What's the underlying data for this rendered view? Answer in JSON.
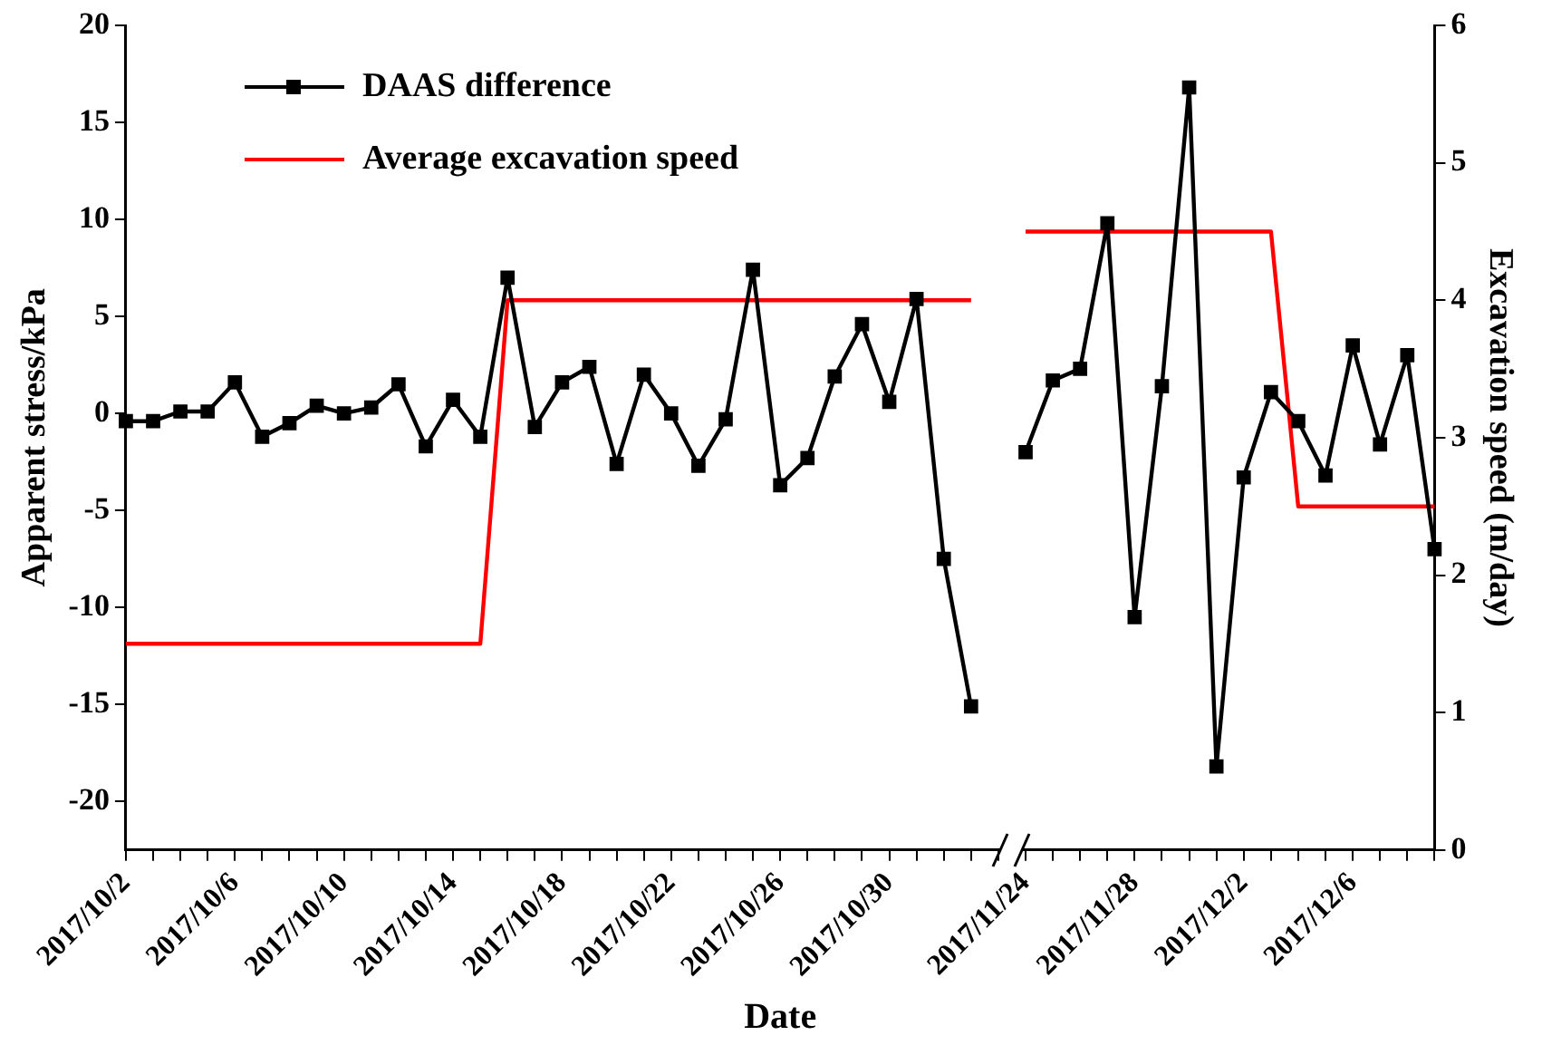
{
  "chart_data": {
    "type": "line",
    "xlabel": "Date",
    "ylabel": "Apparent stress/kPa",
    "y2label": "Excavation speed (m/day)",
    "categories": [
      "2017/10/2",
      null,
      null,
      null,
      "2017/10/6",
      null,
      null,
      null,
      "2017/10/10",
      null,
      null,
      null,
      "2017/10/14",
      null,
      null,
      null,
      "2017/10/18",
      null,
      null,
      null,
      "2017/10/22",
      null,
      null,
      null,
      "2017/10/26",
      null,
      null,
      null,
      "2017/10/30",
      null,
      null,
      null,
      null,
      "2017/11/24",
      null,
      null,
      null,
      "2017/11/28",
      null,
      null,
      null,
      "2017/12/2",
      null,
      null,
      null,
      "2017/12/6",
      null,
      null,
      null
    ],
    "series": [
      {
        "name": "DAAS difference",
        "color": "#000000",
        "marker": "square",
        "values": [
          -0.4,
          -0.4,
          0.1,
          0.1,
          1.6,
          -1.2,
          -0.5,
          0.4,
          0.0,
          0.3,
          1.5,
          -1.7,
          0.7,
          -1.2,
          7.0,
          -0.7,
          1.6,
          2.4,
          -2.6,
          2.0,
          0.0,
          -2.7,
          -0.3,
          7.4,
          -3.7,
          -2.3,
          1.9,
          4.6,
          0.6,
          5.9,
          -7.5,
          -15.1,
          null,
          -2.0,
          1.7,
          2.3,
          9.8,
          -10.5,
          1.4,
          16.8,
          -18.2,
          -3.3,
          1.1,
          -0.4,
          -3.2,
          3.5,
          -1.6,
          3.0,
          -7.0
        ]
      },
      {
        "name": "Average excavation speed",
        "color": "#ff0000",
        "marker": "none",
        "axis": "y2",
        "values": [
          1.5,
          1.5,
          1.5,
          1.5,
          1.5,
          1.5,
          1.5,
          1.5,
          1.5,
          1.5,
          1.5,
          1.5,
          1.5,
          1.5,
          4.0,
          4.0,
          4.0,
          4.0,
          4.0,
          4.0,
          4.0,
          4.0,
          4.0,
          4.0,
          4.0,
          4.0,
          4.0,
          4.0,
          4.0,
          4.0,
          4.0,
          4.0,
          null,
          4.5,
          4.5,
          4.5,
          4.5,
          4.5,
          4.5,
          4.5,
          4.5,
          4.5,
          4.5,
          2.5,
          2.5,
          2.5,
          2.5,
          2.5,
          2.5
        ]
      }
    ],
    "ylim": [
      -22.5,
      20
    ],
    "yticks": [
      -20,
      -15,
      -10,
      -5,
      0,
      5,
      10,
      15,
      20
    ],
    "y2lim": [
      0,
      6
    ],
    "y2ticks": [
      0,
      1,
      2,
      3,
      4,
      5,
      6
    ],
    "grid": false,
    "legend": "top left"
  }
}
